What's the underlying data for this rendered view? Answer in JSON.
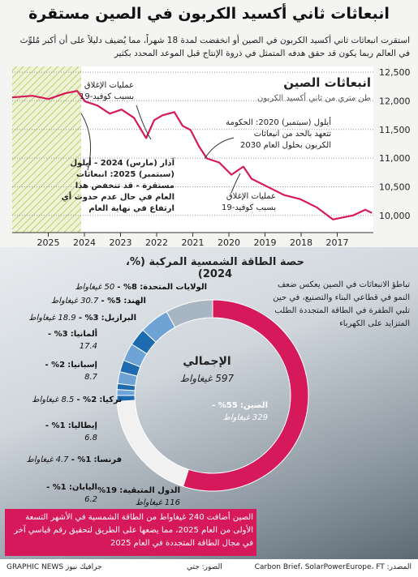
{
  "header": {
    "title": "انبعاثات ثاني أكسيد الكربون في الصين مستقرة",
    "subtitle": "استقرت انبعاثات ثاني أكسيد الكربون في الصين أو انخفضت لمدة 18 شهراً، مما يُضيف دليلاً على أن أكبر مُلوِّث في العالم ربما يكون قد حقق هدفه المتمثل في ذروة الإنتاج قبل الموعد المحدد بكثير"
  },
  "chart_data": [
    {
      "type": "line",
      "title": "انبعاثات الصين",
      "subtitle": "طن متري من ثاني أكسيد الكربون",
      "color": "#d6195a",
      "x": [
        2026.0,
        2025.44,
        2024.99,
        2024.54,
        2024.2,
        2023.98,
        2023.64,
        2023.3,
        2022.97,
        2022.63,
        2022.29,
        2022.07,
        2021.84,
        2021.51,
        2021.28,
        2021.06,
        2020.83,
        2020.61,
        2020.27,
        2019.93,
        2019.6,
        2019.37,
        2018.92,
        2018.47,
        2018.03,
        2017.57,
        2017.12,
        2016.9,
        2016.56,
        2016.22,
        2016.04
      ],
      "values": [
        12060,
        12088,
        12031,
        12131,
        12173,
        11989,
        11918,
        11776,
        11847,
        11705,
        11349,
        11662,
        11747,
        11804,
        11563,
        11491,
        11207,
        10994,
        10923,
        10710,
        10852,
        10639,
        10497,
        10355,
        10284,
        10142,
        9929,
        9957,
        10000,
        10099,
        10043
      ],
      "xlim": [
        2026,
        2016
      ],
      "xticks": [
        2025,
        2024,
        2023,
        2022,
        2021,
        2020,
        2019,
        2018,
        2017
      ],
      "ylim": [
        9700,
        12600
      ],
      "yticks": [
        {
          "value": 10000,
          "label": "10,000"
        },
        {
          "value": 10500,
          "label": "10,500"
        },
        {
          "value": 11000,
          "label": "11,000"
        },
        {
          "value": 11500,
          "label": "11,500"
        },
        {
          "value": 12000,
          "label": "12,000"
        },
        {
          "value": 12500,
          "label": "12,500"
        }
      ],
      "grid": true,
      "annotations": [
        "عمليات الإغلاق بسبب كوفيد-19",
        "أيلول (سبتمبر) 2020: الحكومة تتعهد بالحد من انبعاثات الكربون بحلول العام 2030",
        "آذار (مارس) 2024 - أيلول (سبتمبر) 2025: انبعاثات مستقرة - قد تنخفض هذا العام في حال عدم حدوث أي ارتفاع في نهاية العام",
        "عمليات الإغلاق بسبب كوفيد-19"
      ]
    },
    {
      "type": "donut",
      "title": "حصة الطاقة الشمسية المركبة (%، 2024)",
      "categories": [
        "الصين:",
        "الدول المتبقية:",
        "اليابان:",
        "فرنسا:",
        "إيطاليا:",
        "تركيا:",
        "إسبانيا:",
        "ألمانيا:",
        "البرازيل:",
        "الهند:",
        "الولايات المتحدة:"
      ],
      "values": [
        55,
        19,
        1,
        1,
        1,
        2,
        2,
        3,
        3,
        5,
        8
      ],
      "value_labels": [
        "55% -",
        "19%",
        "1% -",
        "1% -",
        "1% -",
        "2% -",
        "2% -",
        "3% -",
        "3% -",
        "5% -",
        "8% -"
      ],
      "gw": [
        329,
        116,
        6.2,
        4.7,
        6.8,
        8.5,
        8.7,
        17.4,
        18.9,
        30.7,
        50
      ],
      "gw_labels": [
        "329 غيغاواط",
        "116 غيغاواط",
        "6.2",
        "4.7 غيغاواط",
        "6.8",
        "8.5 غيغاواط",
        "8.7",
        "17.4",
        "18.9 غيغاواط",
        "30.7 غيغاواط",
        "50 غيغاواط"
      ],
      "colors": [
        "#d6195a",
        "#f1f1f1",
        "#1f6bb0",
        "#6fa3d6",
        "#1f6bb0",
        "#6fa3d6",
        "#1f6bb0",
        "#6fa3d6",
        "#1f6bb0",
        "#6fa3d6",
        "#a8b6c4"
      ],
      "total_title": "الإجمالي",
      "total": {
        "value": 597,
        "label": "597 غيغاواط"
      }
    }
  ],
  "notes": {
    "right": "تباطؤ الانبعاثات في الصين يعكس ضعف النمو في قطاعي البناء والتصنيع، في حين تلبي الطفرة في الطاقة المتجددة الطلب المتزايد على الكهرباء",
    "box": "الصين أضافت 240 غيغاواط من الطاقة الشمسية في الأشهر التسعة الأولى من العام 2025، مما يضعها على الطريق لتحقيق رقم قياسي آخر في مجال الطاقة المتجددة في العام 2025"
  },
  "footer": {
    "source": "المصدر: Carbon Brief، SolarPowerEurope، FT",
    "photos": "الصور: جتي",
    "brand": "GRAPHIC NEWS جرافيك نيوز"
  }
}
